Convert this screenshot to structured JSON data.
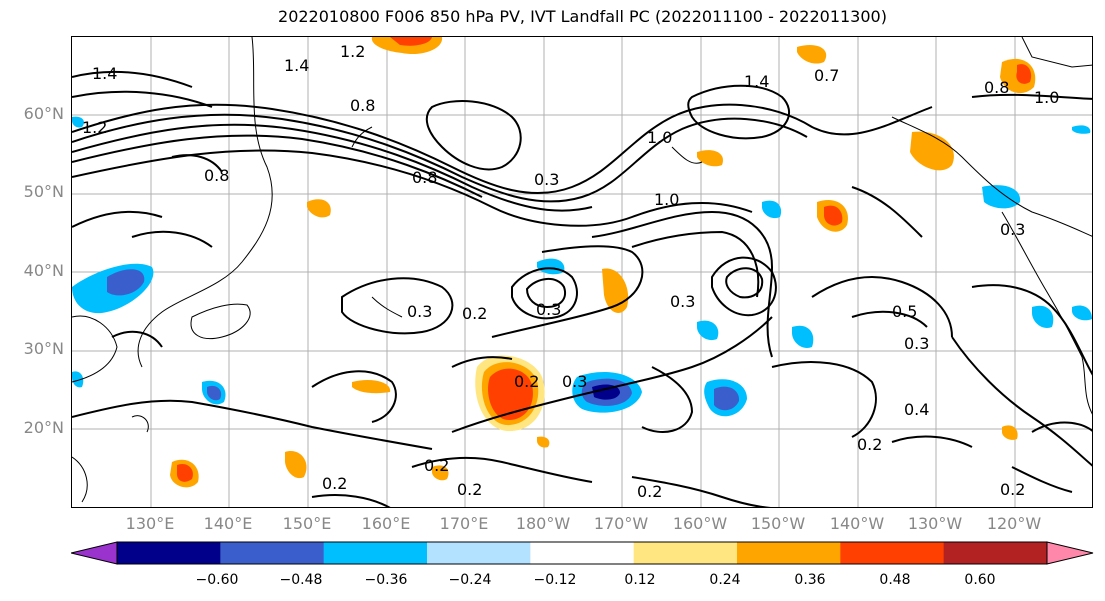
{
  "title": "2022010800 F006 850 hPa PV, IVT Landfall PC (2022011100 - 2022011300)",
  "lat_labels": [
    "60°N",
    "50°N",
    "40°N",
    "30°N",
    "20°N"
  ],
  "lon_labels": [
    "130°E",
    "140°E",
    "150°E",
    "160°E",
    "170°E",
    "180°W",
    "170°W",
    "160°W",
    "150°W",
    "140°W",
    "130°W",
    "120°W"
  ],
  "colorbar": {
    "colors": [
      "#9a32cd",
      "#00008b",
      "#3a5fcd",
      "#00bfff",
      "#b2e2ff",
      "#ffffff",
      "#ffe680",
      "#ffa500",
      "#ff4000",
      "#b22222",
      "#ff88aa"
    ],
    "ticks": [
      "−0.60",
      "−0.48",
      "−0.36",
      "−0.24",
      "−0.12",
      "0.12",
      "0.24",
      "0.36",
      "0.48",
      "0.60"
    ]
  },
  "contour_labels": [
    "1.4",
    "1.2",
    "1.4",
    "1.2",
    "0.8",
    "0.8",
    "1.0",
    "1.0",
    "1.4",
    "0.8",
    "1.0",
    "0.3",
    "0.3",
    "0.2",
    "0.3",
    "0.3",
    "0.5",
    "0.3",
    "0.2",
    "0.3",
    "0.2",
    "0.2",
    "0.2",
    "0.2",
    "0.2",
    "0.2",
    "0.4",
    "0.3",
    "0.7",
    "0.8"
  ]
}
